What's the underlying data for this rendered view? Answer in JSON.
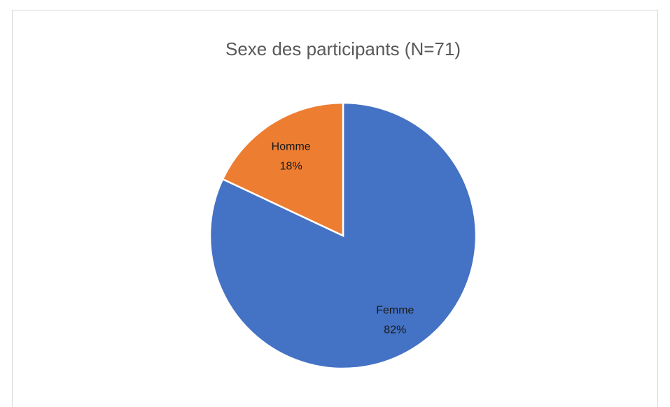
{
  "chart_data": {
    "type": "pie",
    "title": "Sexe des participants (N=71)",
    "categories": [
      "Femme",
      "Homme"
    ],
    "values": [
      82,
      18
    ],
    "value_labels": [
      "82%",
      "18%"
    ],
    "colors": [
      "#4472c4",
      "#ed7d31"
    ]
  }
}
